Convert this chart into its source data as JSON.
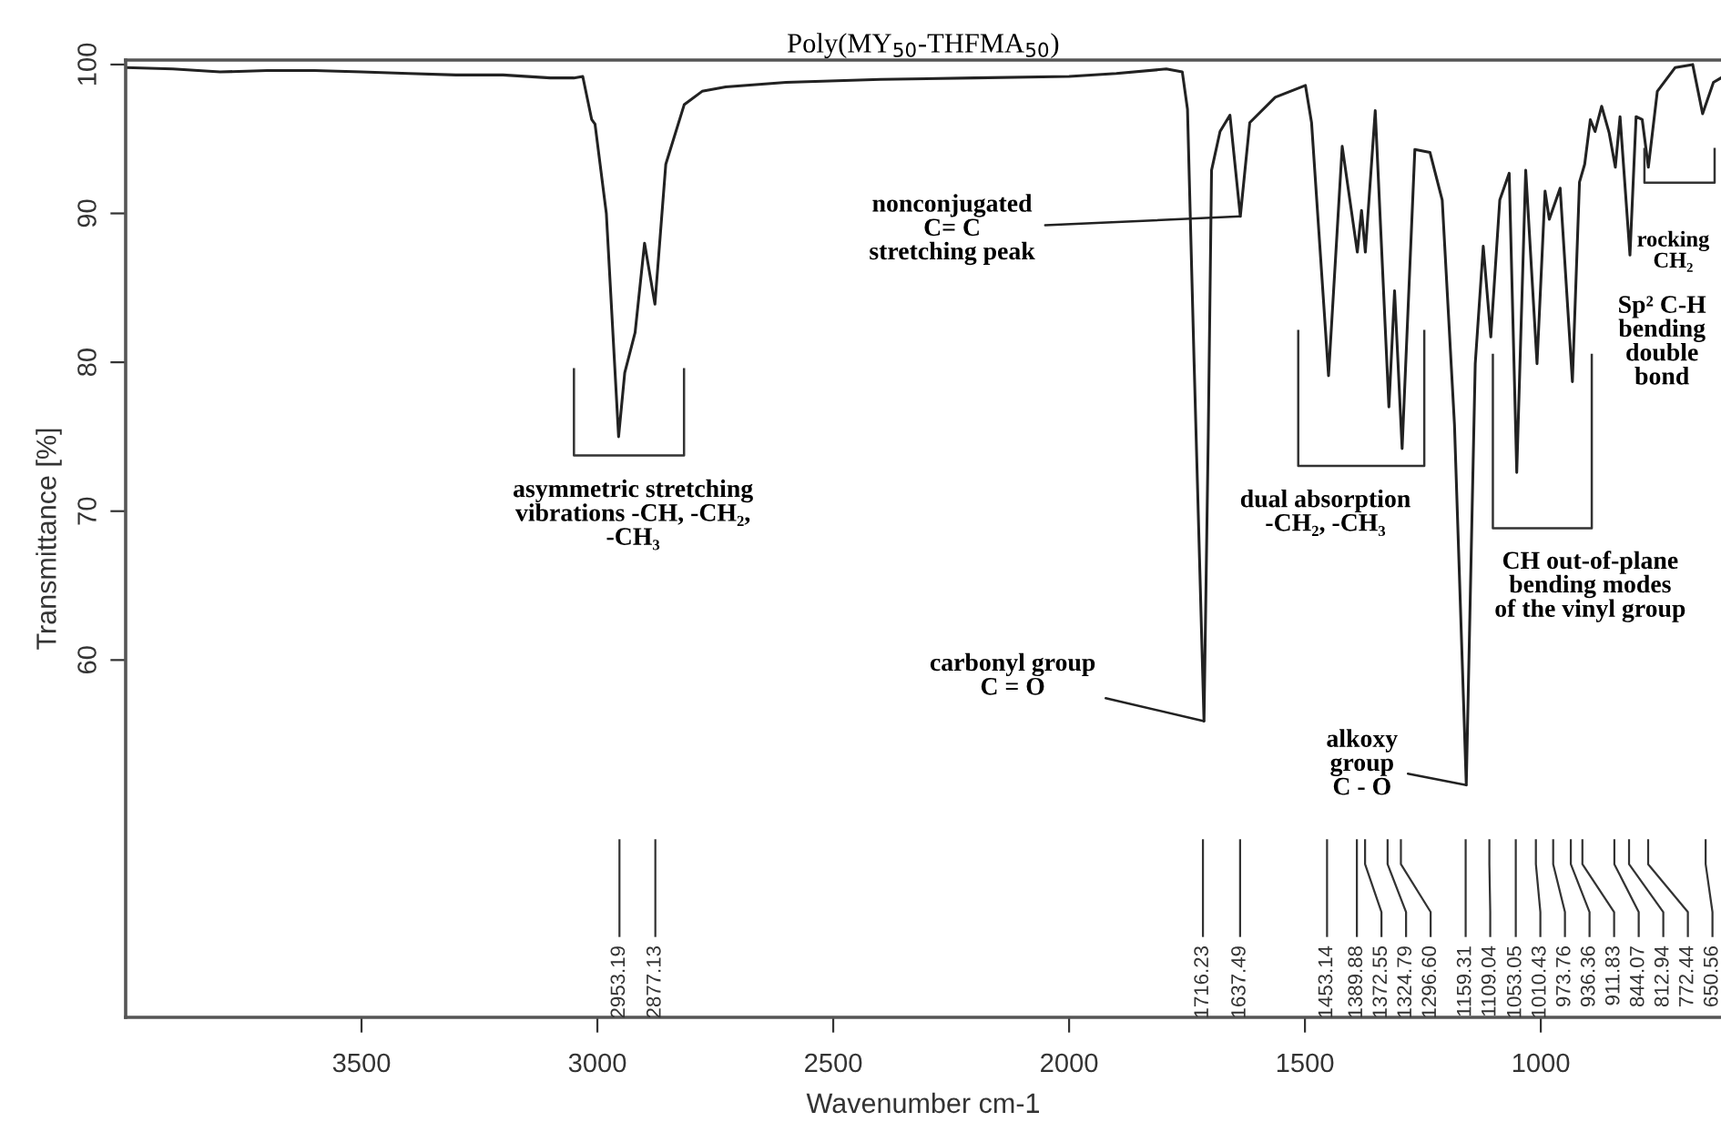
{
  "chart_data": {
    "type": "line",
    "title": "Poly(MY$_{50}$-THFMA$_{50}$)",
    "xlabel": "Wavenumber cm-1",
    "ylabel": "Transmittance [%]",
    "xlim": [
      4000,
      618
    ],
    "ylim": [
      36,
      100.3
    ],
    "xticks": [
      3500,
      3000,
      2500,
      2000,
      1500,
      1000
    ],
    "yticks": [
      60,
      70,
      80,
      90,
      100
    ],
    "grid": false,
    "legend": false,
    "marker": "none",
    "line_style": "solid",
    "series": [
      {
        "color": "#222222",
        "x": [
          4000,
          3900,
          3800,
          3700,
          3600,
          3500,
          3400,
          3300,
          3200,
          3100,
          3050,
          3031,
          3012,
          3005,
          2981,
          2955,
          2942,
          2920,
          2900,
          2878,
          2855,
          2816,
          2778,
          2728,
          2600,
          2400,
          2200,
          2000,
          1900,
          1794,
          1760,
          1749,
          1735,
          1714,
          1705,
          1698,
          1680,
          1659,
          1637,
          1617,
          1563,
          1499,
          1486,
          1450,
          1421,
          1389,
          1380,
          1372,
          1351,
          1322,
          1310,
          1294,
          1267,
          1235,
          1209,
          1183,
          1158,
          1139,
          1122,
          1106,
          1087,
          1067,
          1051,
          1032,
          1008,
          991,
          982,
          959,
          933,
          918,
          907,
          895,
          885,
          871,
          855,
          842,
          832,
          811,
          798,
          785,
          772,
          753,
          715,
          678,
          657,
          634,
          618
        ],
        "values": [
          99.8,
          99.7,
          99.5,
          99.6,
          99.6,
          99.5,
          99.4,
          99.3,
          99.3,
          99.1,
          99.1,
          99.2,
          96.3,
          96.0,
          90.0,
          75.0,
          79.3,
          82.0,
          88.0,
          83.9,
          93.3,
          97.3,
          98.2,
          98.5,
          98.8,
          99.0,
          99.1,
          99.2,
          99.4,
          99.7,
          99.5,
          97.0,
          80,
          55.9,
          75,
          92.9,
          95.5,
          96.6,
          89.8,
          96.1,
          97.8,
          98.6,
          96.1,
          79.1,
          94.5,
          87.4,
          90.2,
          87.4,
          96.9,
          77.0,
          84.8,
          74.2,
          94.3,
          94.1,
          90.9,
          75.8,
          51.6,
          79.9,
          87.8,
          81.7,
          90.9,
          92.7,
          72.6,
          92.9,
          79.9,
          91.5,
          89.6,
          91.7,
          78.7,
          92.1,
          93.3,
          96.3,
          95.5,
          97.2,
          95.4,
          93.1,
          96.5,
          87.2,
          96.5,
          96.3,
          93.1,
          98.2,
          99.8,
          100.0,
          96.7,
          98.8,
          99.1
        ]
      }
    ],
    "annotations": [
      "asymmetric stretching\nvibrations -CH, -CH₂,\n-CH₃",
      {
        "text": "nonconjugated\nC= C\nstretching peak",
        "x": 1637,
        "y": 89.8
      },
      "dual absorption\n-CH₂, -CH₃",
      "CH out-of-plane\nbending modes\nof the vinyl group",
      {
        "text": "carbonyl group\nC = O",
        "x": 1714,
        "y": 55.9
      },
      {
        "text": "alkoxy\ngroup\nC - O",
        "x": 1158,
        "y": 51.6
      },
      "rocking\nCH₂",
      "Sp² C-H\nbending\ndouble\nbond",
      {
        "text": "2953.19",
        "x": 2953.19
      },
      {
        "text": "2877.13",
        "x": 2877.13
      },
      {
        "text": "1716.23",
        "x": 1716.23
      },
      {
        "text": "1637.49",
        "x": 1637.49
      },
      {
        "text": "1453.14",
        "x": 1453.14
      },
      {
        "text": "1389.88",
        "x": 1389.88
      },
      {
        "text": "1372.55",
        "x": 1372.55
      },
      {
        "text": "1324.79",
        "x": 1324.79
      },
      {
        "text": "1296.60",
        "x": 1296.6
      },
      {
        "text": "1159.31",
        "x": 1159.31
      },
      {
        "text": "1109.04",
        "x": 1109.04
      },
      {
        "text": "1053.05",
        "x": 1053.05
      },
      {
        "text": "1010.43",
        "x": 1010.43
      },
      {
        "text": "973.76",
        "x": 973.76
      },
      {
        "text": "936.36",
        "x": 936.36
      },
      {
        "text": "911.83",
        "x": 911.83
      },
      {
        "text": "844.07",
        "x": 844.07
      },
      {
        "text": "812.94",
        "x": 812.94
      },
      {
        "text": "772.44",
        "x": 772.44
      },
      {
        "text": "650.56",
        "x": 650.56
      }
    ]
  }
}
